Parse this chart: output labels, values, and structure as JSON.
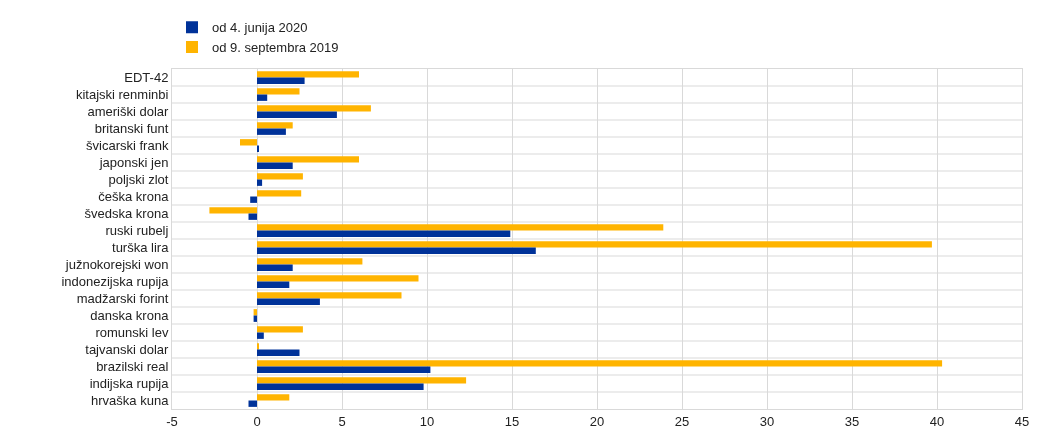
{
  "chart_data": {
    "type": "bar",
    "orientation": "horizontal",
    "categories": [
      "EDT-42",
      "kitajski renminbi",
      "ameriški dolar",
      "britanski funt",
      "švicarski frank",
      "japonski jen",
      "poljski zlot",
      "češka krona",
      "švedska krona",
      "ruski rubelj",
      "turška lira",
      "južnokorejski won",
      "indonezijska rupija",
      "madžarski forint",
      "danska krona",
      "romunski lev",
      "tajvanski dolar",
      "brazilski real",
      "indijska rupija",
      "hrvaška kuna"
    ],
    "series": [
      {
        "name": "od 4. junija 2020",
        "color": "#003299",
        "values": [
          2.8,
          0.6,
          4.7,
          1.7,
          0.1,
          2.1,
          0.3,
          -0.4,
          -0.5,
          14.9,
          16.4,
          2.1,
          1.9,
          3.7,
          -0.2,
          0.4,
          2.5,
          10.2,
          9.8,
          -0.5
        ]
      },
      {
        "name": "od 9. septembra 2019",
        "color": "#ffb400",
        "values": [
          6.0,
          2.5,
          6.7,
          2.1,
          -1.0,
          6.0,
          2.7,
          2.6,
          -2.8,
          23.9,
          39.7,
          6.2,
          9.5,
          8.5,
          -0.2,
          2.7,
          0.1,
          40.3,
          12.3,
          1.9
        ]
      }
    ],
    "xlim": [
      -5,
      45
    ],
    "xticks": [
      -5,
      0,
      5,
      10,
      15,
      20,
      25,
      30,
      35,
      40,
      45
    ],
    "grid": true,
    "legend": "top left"
  }
}
